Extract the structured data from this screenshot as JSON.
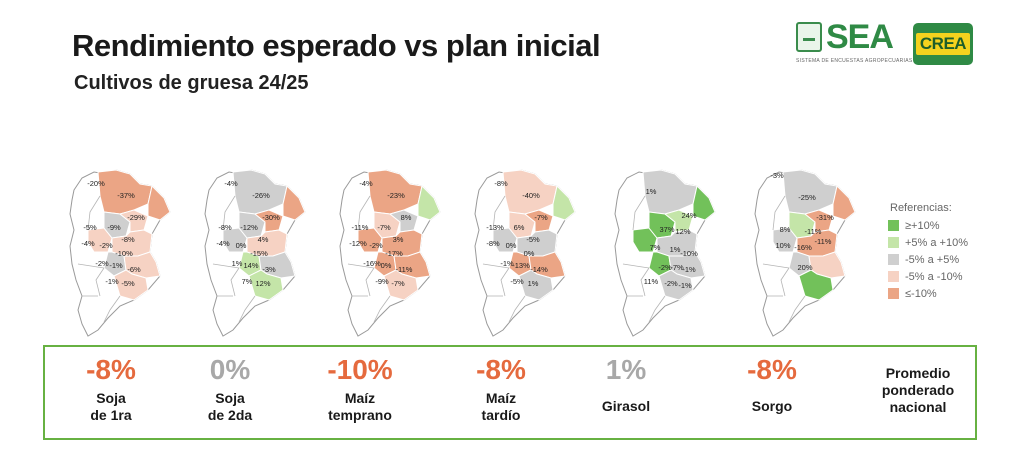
{
  "header": {
    "title": "Rendimiento esperado vs plan inicial",
    "subtitle": "Cultivos de gruesa 24/25"
  },
  "logos": {
    "sea_word": "SEA",
    "sea_tagline": "SISTEMA DE ENCUESTAS AGROPECUARIAS",
    "crea_word": "CREA"
  },
  "colors": {
    "strong_pos": "#72c15a",
    "mild_pos": "#c4e5a8",
    "neutral": "#cfcfcf",
    "mild_neg": "#f6d2c3",
    "strong_neg": "#eba585",
    "summary_border": "#67b142",
    "neg_text": "#e56a3e",
    "neutral_text": "#a8a8a8"
  },
  "legend": {
    "title": "Referencias:",
    "items": [
      {
        "label": "≥+10%",
        "color": "#72c15a"
      },
      {
        "label": "+5% a +10%",
        "color": "#c4e5a8"
      },
      {
        "label": "-5% a +5%",
        "color": "#cfcfcf"
      },
      {
        "label": "-5% a -10%",
        "color": "#f6d2c3"
      },
      {
        "label": "≤-10%",
        "color": "#eba585"
      }
    ]
  },
  "maps": [
    {
      "crop": "Soja de 1ra",
      "labels": [
        "-20%",
        "-37%",
        "-29%",
        "-5%",
        "-9%",
        "-4%",
        "-2%",
        "-8%",
        "-10%",
        "-2%",
        "-1%",
        "-6%",
        "-1%",
        "-5%"
      ]
    },
    {
      "crop": "Soja de 2da",
      "labels": [
        "-4%",
        "-26%",
        "-30%",
        "-8%",
        "-12%",
        "-4%",
        "0%",
        "4%",
        "-15%",
        "1%",
        "14%",
        "-3%",
        "7%",
        "12%"
      ]
    },
    {
      "crop": "Maíz temprano",
      "labels": [
        "-4%",
        "-23%",
        "8%",
        "-11%",
        "-7%",
        "-12%",
        "-2%",
        "3%",
        "-17%",
        "-16%",
        "0%",
        "-11%",
        "-9%",
        "-7%"
      ]
    },
    {
      "crop": "Maíz tardío",
      "labels": [
        "-8%",
        "-40%",
        "-7%",
        "-13%",
        "6%",
        "-8%",
        "0%",
        "-5%",
        "0%",
        "-1%",
        "-13%",
        "-14%",
        "-5%",
        "1%"
      ]
    },
    {
      "crop": "Girasol",
      "labels": [
        "1%",
        "24%",
        "37%",
        "12%",
        "7%",
        "1%",
        "-10%",
        "-2%",
        "-7%",
        "-1%",
        "11%",
        "-2%",
        "-1%"
      ]
    },
    {
      "crop": "Sorgo",
      "labels": [
        "-3%",
        "-25%",
        "-31%",
        "8%",
        "-11%",
        "10%",
        "-16%",
        "-11%",
        "20%"
      ]
    }
  ],
  "summary": [
    {
      "value": "-8%",
      "label": [
        "Soja",
        "de 1ra"
      ],
      "tone": "neg"
    },
    {
      "value": "0%",
      "label": [
        "Soja",
        "de 2da"
      ],
      "tone": "neutral"
    },
    {
      "value": "-10%",
      "label": [
        "Maíz",
        "temprano"
      ],
      "tone": "neg"
    },
    {
      "value": "-8%",
      "label": [
        "Maíz",
        "tardío"
      ],
      "tone": "neg"
    },
    {
      "value": "1%",
      "label": [
        "Girasol"
      ],
      "tone": "neutral"
    },
    {
      "value": "-8%",
      "label": [
        "Sorgo"
      ],
      "tone": "neg"
    }
  ],
  "summary_note": [
    "Promedio",
    "ponderado",
    "nacional"
  ]
}
